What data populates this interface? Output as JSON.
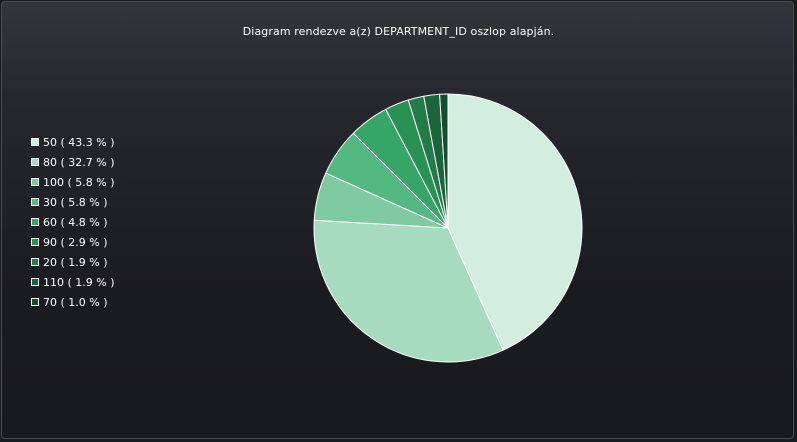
{
  "chart_data": {
    "type": "pie",
    "title": "Diagram rendezve a(z) DEPARTMENT_ID oszlop alapján.",
    "legend_position": "left",
    "slices": [
      {
        "label": "50 ( 43.3 % )",
        "category": "50",
        "percent": 43.3,
        "color": "#d3eddf"
      },
      {
        "label": "80 ( 32.7 % )",
        "category": "80",
        "percent": 32.7,
        "color": "#a7dbc0"
      },
      {
        "label": "100 ( 5.8 % )",
        "category": "100",
        "percent": 5.8,
        "color": "#7fcaa0"
      },
      {
        "label": "30 ( 5.8 % )",
        "category": "30",
        "percent": 5.8,
        "color": "#54b882"
      },
      {
        "label": "60 ( 4.8 % )",
        "category": "60",
        "percent": 4.8,
        "color": "#36a566"
      },
      {
        "label": "90 ( 2.9 % )",
        "category": "90",
        "percent": 2.9,
        "color": "#2a9155"
      },
      {
        "label": "20 ( 1.9 % )",
        "category": "20",
        "percent": 1.9,
        "color": "#227b48"
      },
      {
        "label": "110 ( 1.9 % )",
        "category": "110",
        "percent": 1.9,
        "color": "#1b653b"
      },
      {
        "label": "70 ( 1.0 % )",
        "category": "70",
        "percent": 1.0,
        "color": "#134f2d"
      }
    ]
  }
}
